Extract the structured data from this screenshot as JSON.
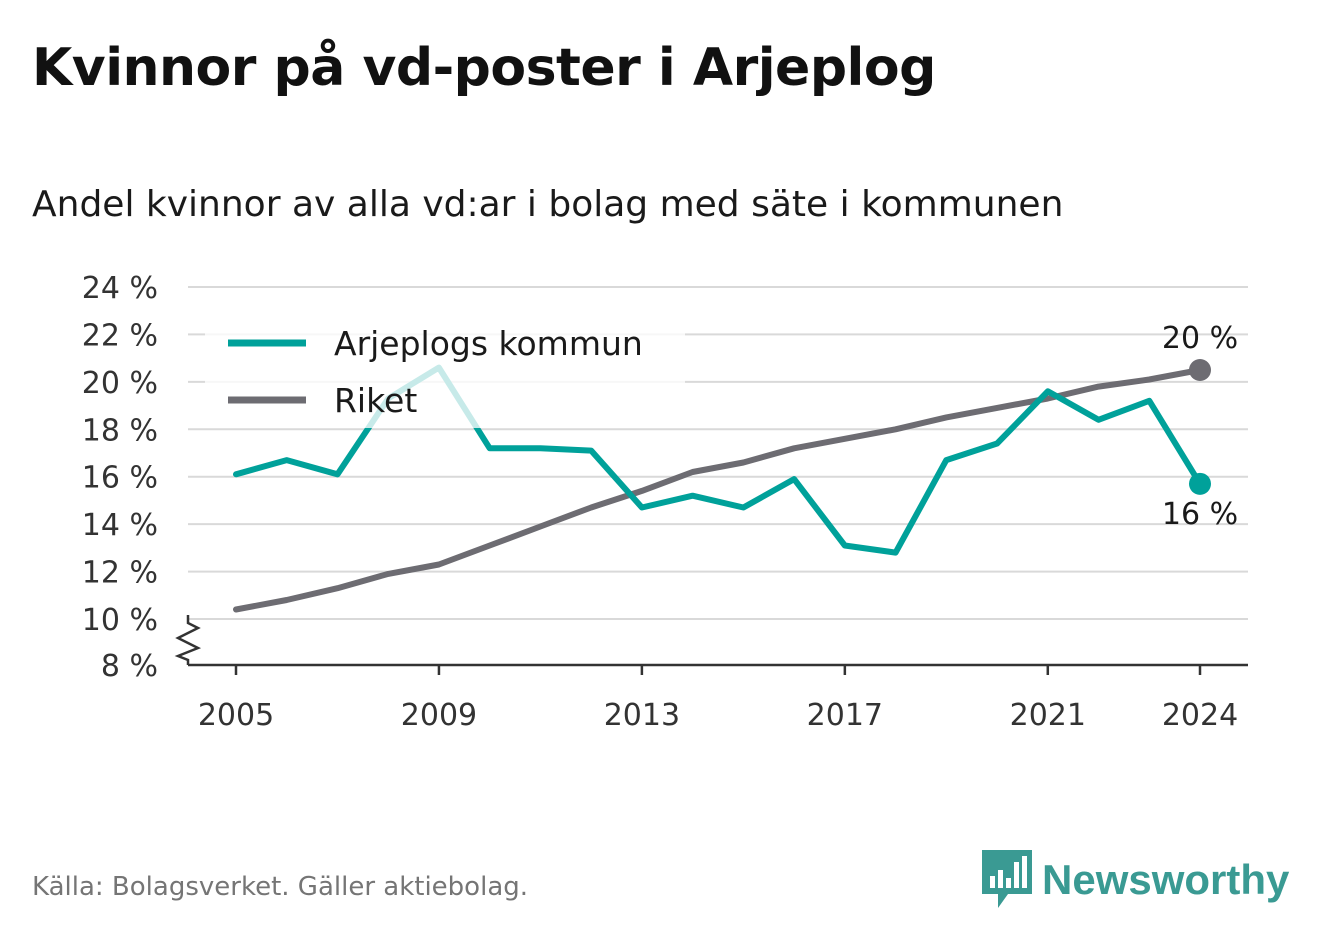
{
  "chart_data": {
    "type": "line",
    "title": "Kvinnor på vd-poster i Arjeplog",
    "subtitle": "Andel kvinnor av alla vd:ar i bolag med säte i kommunen",
    "x": [
      2005,
      2006,
      2007,
      2008,
      2009,
      2010,
      2011,
      2012,
      2013,
      2014,
      2015,
      2016,
      2017,
      2018,
      2019,
      2020,
      2021,
      2022,
      2023,
      2024
    ],
    "series": [
      {
        "name": "Arjeplogs kommun",
        "color": "#00a19a",
        "values": [
          16.1,
          16.7,
          16.1,
          19.3,
          20.6,
          17.2,
          17.2,
          17.1,
          14.7,
          15.2,
          14.7,
          15.9,
          13.1,
          12.8,
          16.7,
          17.4,
          19.6,
          18.4,
          19.2,
          15.7
        ]
      },
      {
        "name": "Riket",
        "color": "#6d6c72",
        "values": [
          10.4,
          10.8,
          11.3,
          11.9,
          12.3,
          13.1,
          13.9,
          14.7,
          15.4,
          16.2,
          16.6,
          17.2,
          17.6,
          18.0,
          18.5,
          18.9,
          19.3,
          19.8,
          20.1,
          20.5
        ]
      }
    ],
    "ylim": [
      8,
      24
    ],
    "y_ticks": [
      "8 %",
      "10 %",
      "12 %",
      "14 %",
      "16 %",
      "18 %",
      "20 %",
      "22 %",
      "24 %"
    ],
    "x_ticks": [
      "2005",
      "2009",
      "2013",
      "2017",
      "2021",
      "2024"
    ],
    "end_labels": {
      "Arjeplogs kommun": "16 %",
      "Riket": "20 %"
    },
    "axis_break": true,
    "grid": "horizontal",
    "legend": "top-left"
  },
  "footer": {
    "source": "Källa: Bolagsverket. Gäller aktiebolag.",
    "brand": "Newsworthy"
  },
  "colors": {
    "brand": "#3a9a93",
    "grid": "#d9d9d9",
    "axis": "#333333"
  }
}
